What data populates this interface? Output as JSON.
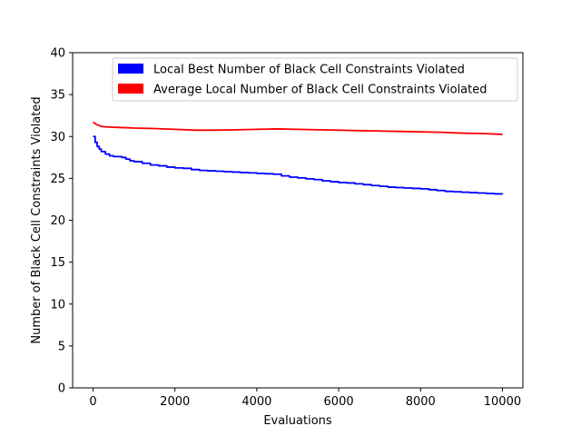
{
  "chart_data": {
    "type": "line",
    "title": "",
    "xlabel": "Evaluations",
    "ylabel": "Number of Black Cell Constraints Violated",
    "xlim": [
      -500,
      10500
    ],
    "ylim": [
      0,
      40
    ],
    "xticks": [
      0,
      2000,
      4000,
      6000,
      8000,
      10000
    ],
    "yticks": [
      0,
      5,
      10,
      15,
      20,
      25,
      30,
      35,
      40
    ],
    "grid": false,
    "legend_position": "top-right",
    "series": [
      {
        "name": "Local Best Number of Black Cell Constraints Violated",
        "color": "#0000ff",
        "step": true,
        "x": [
          0,
          50,
          100,
          150,
          200,
          300,
          400,
          500,
          700,
          800,
          900,
          1000,
          1200,
          1400,
          1600,
          1800,
          2000,
          2200,
          2400,
          2600,
          2800,
          3000,
          3200,
          3400,
          3600,
          3800,
          4000,
          4200,
          4400,
          4600,
          4800,
          5000,
          5200,
          5400,
          5600,
          5800,
          6000,
          6200,
          6400,
          6600,
          6800,
          7000,
          7200,
          7400,
          7600,
          7800,
          8000,
          8200,
          8400,
          8600,
          8800,
          9000,
          9200,
          9400,
          9600,
          9800,
          10000
        ],
        "y": [
          30.0,
          29.3,
          28.8,
          28.5,
          28.2,
          27.9,
          27.7,
          27.6,
          27.5,
          27.3,
          27.1,
          27.0,
          26.8,
          26.6,
          26.5,
          26.35,
          26.25,
          26.2,
          26.05,
          25.95,
          25.9,
          25.85,
          25.8,
          25.75,
          25.7,
          25.65,
          25.6,
          25.55,
          25.5,
          25.3,
          25.15,
          25.05,
          24.95,
          24.85,
          24.7,
          24.6,
          24.5,
          24.45,
          24.35,
          24.25,
          24.15,
          24.05,
          23.95,
          23.9,
          23.85,
          23.8,
          23.75,
          23.65,
          23.55,
          23.45,
          23.4,
          23.35,
          23.3,
          23.25,
          23.2,
          23.15,
          23.1
        ]
      },
      {
        "name": "Average Local Number of Black Cell Constraints Violated",
        "color": "#ff0000",
        "step": false,
        "x": [
          0,
          100,
          200,
          300,
          500,
          800,
          1000,
          1500,
          2000,
          2500,
          3000,
          3500,
          4000,
          4500,
          5000,
          5500,
          6000,
          6500,
          7000,
          7500,
          8000,
          8500,
          9000,
          9500,
          10000
        ],
        "y": [
          31.7,
          31.4,
          31.2,
          31.15,
          31.1,
          31.05,
          31.0,
          30.95,
          30.85,
          30.75,
          30.75,
          30.8,
          30.85,
          30.9,
          30.85,
          30.8,
          30.75,
          30.7,
          30.65,
          30.6,
          30.55,
          30.5,
          30.4,
          30.35,
          30.25
        ]
      }
    ]
  }
}
